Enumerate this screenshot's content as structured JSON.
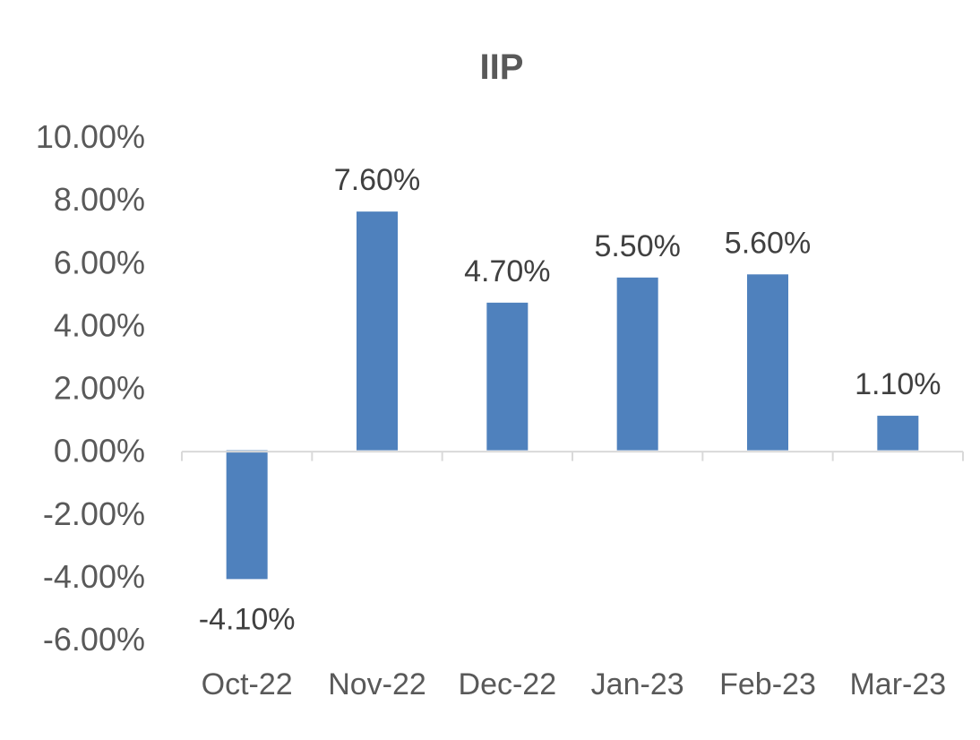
{
  "chart_data": {
    "type": "bar",
    "title": "IIP",
    "categories": [
      "Oct-22",
      "Nov-22",
      "Dec-22",
      "Jan-23",
      "Feb-23",
      "Mar-23"
    ],
    "series": [
      {
        "values": [
          -4.1,
          7.6,
          4.7,
          5.5,
          5.6,
          1.1
        ],
        "data_labels": [
          "-4.10%",
          "7.60%",
          "4.70%",
          "5.50%",
          "5.60%",
          "1.10%"
        ],
        "color": "#4f81bd"
      }
    ],
    "y_ticks": [
      10,
      8,
      6,
      4,
      2,
      0,
      -2,
      -4,
      -6
    ],
    "y_tick_labels": [
      "10.00%",
      "8.00%",
      "6.00%",
      "4.00%",
      "2.00%",
      "0.00%",
      "-2.00%",
      "-4.00%",
      "-6.00%"
    ],
    "ylim": [
      -6,
      10
    ],
    "xlabel": "",
    "ylabel": "",
    "grid": false,
    "legend": "none",
    "colors": {
      "bar": "#4f81bd",
      "axis": "#d9d9d9",
      "text": "#595959",
      "label": "#404040"
    }
  }
}
